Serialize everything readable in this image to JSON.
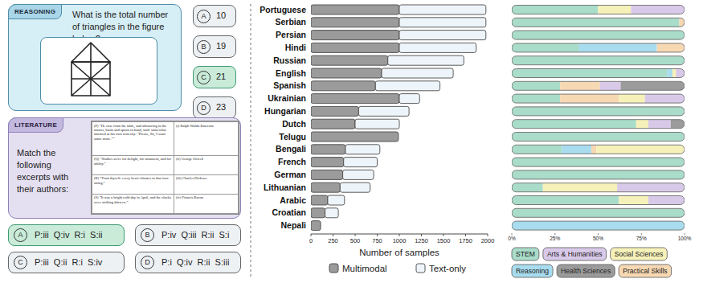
{
  "panels": {
    "reasoning": {
      "tag": "REASONING",
      "question": "What is the total number of triangles in the figure below?",
      "answer": "C",
      "options": [
        {
          "letter": "A",
          "text": "10"
        },
        {
          "letter": "B",
          "text": "19"
        },
        {
          "letter": "C",
          "text": "21"
        },
        {
          "letter": "D",
          "text": "23"
        }
      ]
    },
    "literature": {
      "tag": "LITERATURE",
      "question": "Match the following excerpts with their authors:",
      "answer": "A",
      "table": {
        "rows": [
          [
            "(P) “He rose from the table, and advancing to the master, basin and spoon in hand, said: somewhat alarmed at his own temerity: “Please, Sir, I want some more.””",
            "(i) Ralph Waldo Emerson"
          ],
          [
            "(Q) “Studies serve for delight, for ornament, and for ability.”",
            "(ii) George Orwell"
          ],
          [
            "(R) “Trust thyself: every heart vibrates to that iron string.”",
            "(iii) Charles Dickens"
          ],
          [
            "(S) “It was a bright cold day in April, and the clocks were striking thirteen.”",
            "(iv) Francis Bacon"
          ]
        ]
      },
      "options": [
        {
          "letter": "A",
          "text": "P:iii  Q:iv  R:i  S:ii"
        },
        {
          "letter": "B",
          "text": "P:iv  Q:iii  R:ii  S:i"
        },
        {
          "letter": "C",
          "text": "P:iii  Q:ii  R:i  S:iv"
        },
        {
          "letter": "D",
          "text": "P:i  Q:iv  R:ii  S:iii"
        }
      ]
    }
  },
  "chart_data": [
    {
      "type": "bar",
      "orientation": "horizontal",
      "stacked": true,
      "grid": false,
      "legend": "bottom",
      "xlabel": "Number of samples",
      "categories": [
        "Portuguese",
        "Serbian",
        "Persian",
        "Hindi",
        "Russian",
        "English",
        "Spanish",
        "Ukrainian",
        "Hungarian",
        "Dutch",
        "Telugu",
        "Bengali",
        "French",
        "German",
        "Lithuanian",
        "Arabic",
        "Croatian",
        "Nepali"
      ],
      "series": [
        {
          "name": "Multimodal",
          "color": "#9b9b9b",
          "values": [
            1000,
            1000,
            1000,
            1000,
            870,
            800,
            730,
            1000,
            540,
            500,
            990,
            390,
            370,
            360,
            330,
            190,
            160,
            110
          ]
        },
        {
          "name": "Text-only",
          "color": "#eef5fa",
          "values": [
            980,
            980,
            980,
            870,
            860,
            810,
            730,
            230,
            570,
            500,
            0,
            390,
            380,
            350,
            340,
            190,
            150,
            0
          ]
        }
      ],
      "xlim": [
        0,
        2000
      ],
      "xticks": [
        0,
        250,
        500,
        750,
        1000,
        1250,
        1500,
        1750,
        2000
      ]
    },
    {
      "type": "bar",
      "orientation": "horizontal",
      "stacked": true,
      "grid": false,
      "legend": "bottom",
      "tick_labels": "x",
      "categories": [
        null,
        null,
        null,
        null,
        null,
        null,
        null,
        null,
        null,
        null,
        null,
        null,
        null,
        null,
        null,
        null,
        null,
        null
      ],
      "series": [
        {
          "name": "STEM",
          "color": "#a9dcc9",
          "values": [
            50,
            97,
            100,
            39,
            100,
            90,
            28,
            28,
            100,
            72,
            100,
            29,
            100,
            100,
            18,
            62,
            100,
            0
          ]
        },
        {
          "name": "Arts & Humanities",
          "color": "#d9c9e9",
          "values": [
            31,
            0,
            0,
            0,
            0,
            5,
            12,
            23,
            0,
            13,
            0,
            0,
            0,
            0,
            39,
            21,
            0,
            0
          ]
        },
        {
          "name": "Social Sciences",
          "color": "#f6f1b9",
          "values": [
            19,
            0,
            0,
            0,
            0,
            2,
            0,
            15,
            0,
            7,
            0,
            51,
            0,
            0,
            43,
            17,
            0,
            0
          ]
        },
        {
          "name": "Reasoning",
          "color": "#a8dcee",
          "values": [
            0,
            0,
            0,
            45,
            0,
            3,
            0,
            0,
            0,
            0,
            0,
            17,
            0,
            0,
            0,
            0,
            0,
            100
          ]
        },
        {
          "name": "Health Sciences",
          "color": "#9b9b9b",
          "values": [
            0,
            0,
            0,
            0,
            0,
            0,
            37,
            0,
            0,
            8,
            0,
            0,
            0,
            0,
            0,
            0,
            0,
            0
          ]
        },
        {
          "name": "Practical Skills",
          "color": "#f6d8b2",
          "values": [
            0,
            3,
            0,
            16,
            0,
            0,
            23,
            34,
            0,
            0,
            0,
            3,
            0,
            0,
            0,
            0,
            0,
            0
          ]
        }
      ],
      "xlim": [
        0,
        100
      ],
      "xticks": [
        {
          "value": 0,
          "label": "0%"
        },
        {
          "value": 25,
          "label": "25%"
        },
        {
          "value": 50,
          "label": "50%"
        },
        {
          "value": 75,
          "label": "75%"
        },
        {
          "value": 100,
          "label": "100%"
        }
      ]
    }
  ]
}
